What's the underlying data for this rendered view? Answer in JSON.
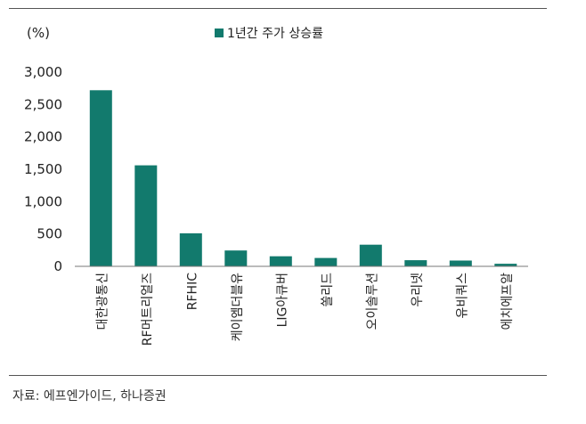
{
  "chart_data": {
    "type": "bar",
    "unit_label": "(%)",
    "legend": "1년간 주가 상승률",
    "legend_position": "top",
    "categories": [
      "대한광통신",
      "RF머트리얼즈",
      "RFHIC",
      "케이엠더블유",
      "LIG아큐버",
      "쏠리드",
      "오이솔루션",
      "우리넷",
      "유비쿼스",
      "에치에프알"
    ],
    "values": [
      2720,
      1560,
      510,
      245,
      155,
      130,
      335,
      95,
      90,
      40
    ],
    "ylim": [
      0,
      3000
    ],
    "yticks": [
      "0",
      "500",
      "1,000",
      "1,500",
      "2,000",
      "2,500",
      "3,000"
    ],
    "grid": false,
    "bar_color": "#127a6d"
  },
  "source": "자료: 에프엔가이드, 하나증권"
}
